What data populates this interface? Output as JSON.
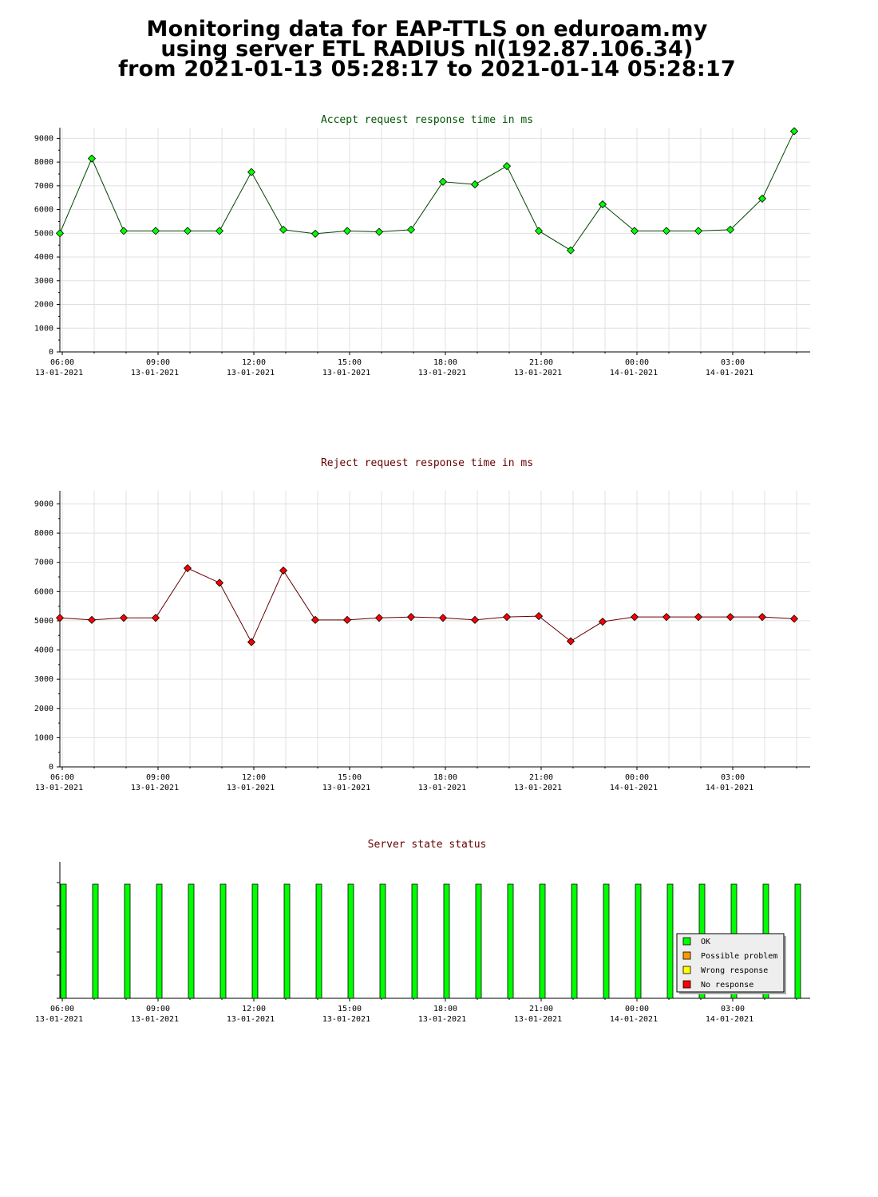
{
  "page": {
    "title_lines": [
      "Monitoring data for EAP-TTLS on eduroam.my",
      "using server ETL RADIUS nl(192.87.106.34)",
      "from 2021-01-13 05:28:17 to 2021-01-14 05:28:17"
    ]
  },
  "colors": {
    "accept_line": "#004400",
    "accept_marker": "#00ff00",
    "reject_line": "#660000",
    "reject_marker": "#ff0000",
    "accept_title": "#005500",
    "reject_title": "#660000",
    "status_title": "#660000",
    "grid": "#e0e0e0"
  },
  "x_ticks": [
    {
      "time": "06:00",
      "date": "13-01-2021"
    },
    {
      "time": "09:00",
      "date": "13-01-2021"
    },
    {
      "time": "12:00",
      "date": "13-01-2021"
    },
    {
      "time": "15:00",
      "date": "13-01-2021"
    },
    {
      "time": "18:00",
      "date": "13-01-2021"
    },
    {
      "time": "21:00",
      "date": "13-01-2021"
    },
    {
      "time": "00:00",
      "date": "14-01-2021"
    },
    {
      "time": "03:00",
      "date": "14-01-2021"
    }
  ],
  "chart_data": [
    {
      "type": "line",
      "title": "Accept request response time in ms",
      "x": [
        "05:28",
        "06:28",
        "07:28",
        "08:28",
        "09:28",
        "10:28",
        "11:28",
        "12:28",
        "13:28",
        "14:28",
        "15:28",
        "16:28",
        "17:28",
        "18:28",
        "19:28",
        "20:28",
        "21:28",
        "22:28",
        "23:28",
        "00:28",
        "01:28",
        "02:28",
        "03:28",
        "04:28"
      ],
      "values": [
        5000,
        8150,
        5100,
        5100,
        5100,
        5100,
        7580,
        5150,
        4980,
        5100,
        5060,
        5150,
        7170,
        7060,
        7830,
        5100,
        4280,
        6220,
        5100,
        5100,
        5100,
        5150,
        6460,
        9300
      ],
      "yticks": [
        0,
        1000,
        2000,
        3000,
        4000,
        5000,
        6000,
        7000,
        8000,
        9000
      ],
      "ylim": [
        0,
        9000
      ],
      "grid": true
    },
    {
      "type": "line",
      "title": "Reject request response time in ms",
      "x": [
        "05:28",
        "06:28",
        "07:28",
        "08:28",
        "09:28",
        "10:28",
        "11:28",
        "12:28",
        "13:28",
        "14:28",
        "15:28",
        "16:28",
        "17:28",
        "18:28",
        "19:28",
        "20:28",
        "21:28",
        "22:28",
        "23:28",
        "00:28",
        "01:28",
        "02:28",
        "03:28",
        "04:28"
      ],
      "values": [
        5100,
        5030,
        5100,
        5100,
        6800,
        6300,
        4270,
        6720,
        5030,
        5030,
        5100,
        5130,
        5100,
        5030,
        5130,
        5160,
        4300,
        4970,
        5130,
        5130,
        5130,
        5130,
        5130,
        5070
      ],
      "yticks": [
        0,
        1000,
        2000,
        3000,
        4000,
        5000,
        6000,
        7000,
        8000,
        9000
      ],
      "ylim": [
        0,
        9000
      ],
      "grid": true
    },
    {
      "type": "bar",
      "title": "Server state status",
      "x": [
        "05:28",
        "06:28",
        "07:28",
        "08:28",
        "09:28",
        "10:28",
        "11:28",
        "12:28",
        "13:28",
        "14:28",
        "15:28",
        "16:28",
        "17:28",
        "18:28",
        "19:28",
        "20:28",
        "21:28",
        "22:28",
        "23:28",
        "00:28",
        "01:28",
        "02:28",
        "03:28",
        "04:28"
      ],
      "states": [
        "OK",
        "OK",
        "OK",
        "OK",
        "OK",
        "OK",
        "OK",
        "OK",
        "OK",
        "OK",
        "OK",
        "OK",
        "OK",
        "OK",
        "OK",
        "OK",
        "OK",
        "OK",
        "OK",
        "OK",
        "OK",
        "OK",
        "OK",
        "OK"
      ],
      "legend": [
        {
          "label": "OK",
          "color": "#00ff00"
        },
        {
          "label": "Possible problem",
          "color": "#ff9900"
        },
        {
          "label": "Wrong response",
          "color": "#ffff00"
        },
        {
          "label": "No response",
          "color": "#ff0000"
        }
      ],
      "legend_position": "bottom-right"
    }
  ]
}
